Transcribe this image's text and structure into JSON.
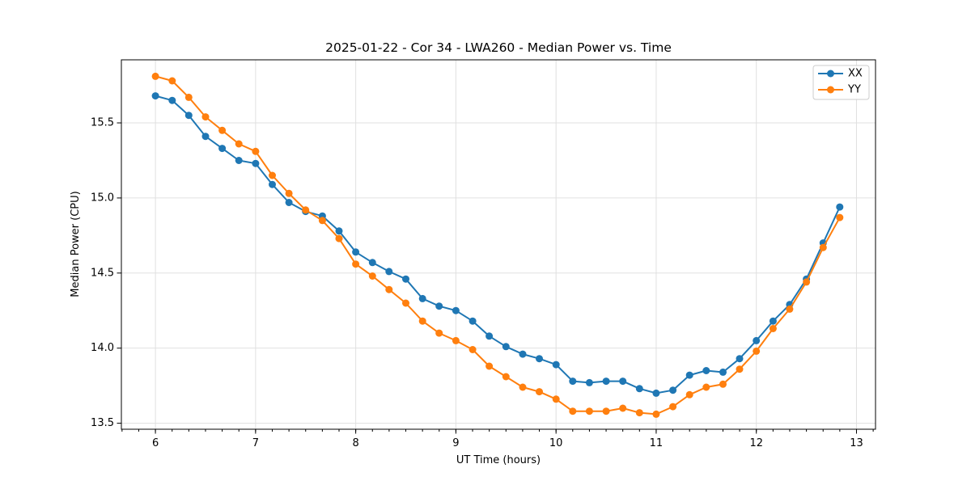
{
  "chart_data": {
    "type": "line",
    "title": "2025-01-22 - Cor 34 - LWA260 - Median Power vs. Time",
    "xlabel": "UT Time (hours)",
    "ylabel": "Median Power (CPU)",
    "xlim": [
      5.66,
      13.19
    ],
    "ylim": [
      13.46,
      15.92
    ],
    "xticks": {
      "values": [
        6,
        7,
        8,
        9,
        10,
        11,
        12,
        13
      ],
      "labels": [
        "6",
        "7",
        "8",
        "9",
        "10",
        "11",
        "12",
        "13"
      ]
    },
    "yticks": {
      "values": [
        13.5,
        14.0,
        14.5,
        15.0,
        15.5
      ],
      "labels": [
        "13.5",
        "14.0",
        "14.5",
        "15.0",
        "15.5"
      ]
    },
    "x_minor_step": 0.166667,
    "grid": true,
    "grid_color": "#e0e0e0",
    "spine_color": "#000000",
    "legend_position": "upper right",
    "legend_border_color": "#cccccc",
    "x": [
      6.0,
      6.167,
      6.333,
      6.5,
      6.667,
      6.833,
      7.0,
      7.167,
      7.333,
      7.5,
      7.667,
      7.833,
      8.0,
      8.167,
      8.333,
      8.5,
      8.667,
      8.833,
      9.0,
      9.167,
      9.333,
      9.5,
      9.667,
      9.833,
      10.0,
      10.167,
      10.333,
      10.5,
      10.667,
      10.833,
      11.0,
      11.167,
      11.333,
      11.5,
      11.667,
      11.833,
      12.0,
      12.167,
      12.333,
      12.5,
      12.667,
      12.833
    ],
    "series": [
      {
        "name": "XX",
        "color": "#1f77b4",
        "marker": "circle",
        "values": [
          15.68,
          15.65,
          15.55,
          15.41,
          15.33,
          15.25,
          15.23,
          15.09,
          14.97,
          14.91,
          14.88,
          14.78,
          14.64,
          14.57,
          14.51,
          14.46,
          14.33,
          14.28,
          14.25,
          14.18,
          14.08,
          14.01,
          13.96,
          13.93,
          13.89,
          13.78,
          13.77,
          13.78,
          13.78,
          13.73,
          13.7,
          13.72,
          13.82,
          13.85,
          13.84,
          13.93,
          14.05,
          14.18,
          14.29,
          14.46,
          14.7,
          14.94
        ]
      },
      {
        "name": "YY",
        "color": "#ff7f0e",
        "marker": "circle",
        "values": [
          15.81,
          15.78,
          15.67,
          15.54,
          15.45,
          15.36,
          15.31,
          15.15,
          15.03,
          14.92,
          14.85,
          14.73,
          14.56,
          14.48,
          14.39,
          14.3,
          14.18,
          14.1,
          14.05,
          13.99,
          13.88,
          13.81,
          13.74,
          13.71,
          13.66,
          13.58,
          13.58,
          13.58,
          13.6,
          13.57,
          13.56,
          13.61,
          13.69,
          13.74,
          13.76,
          13.86,
          13.98,
          14.13,
          14.26,
          14.44,
          14.67,
          14.87
        ]
      }
    ]
  }
}
